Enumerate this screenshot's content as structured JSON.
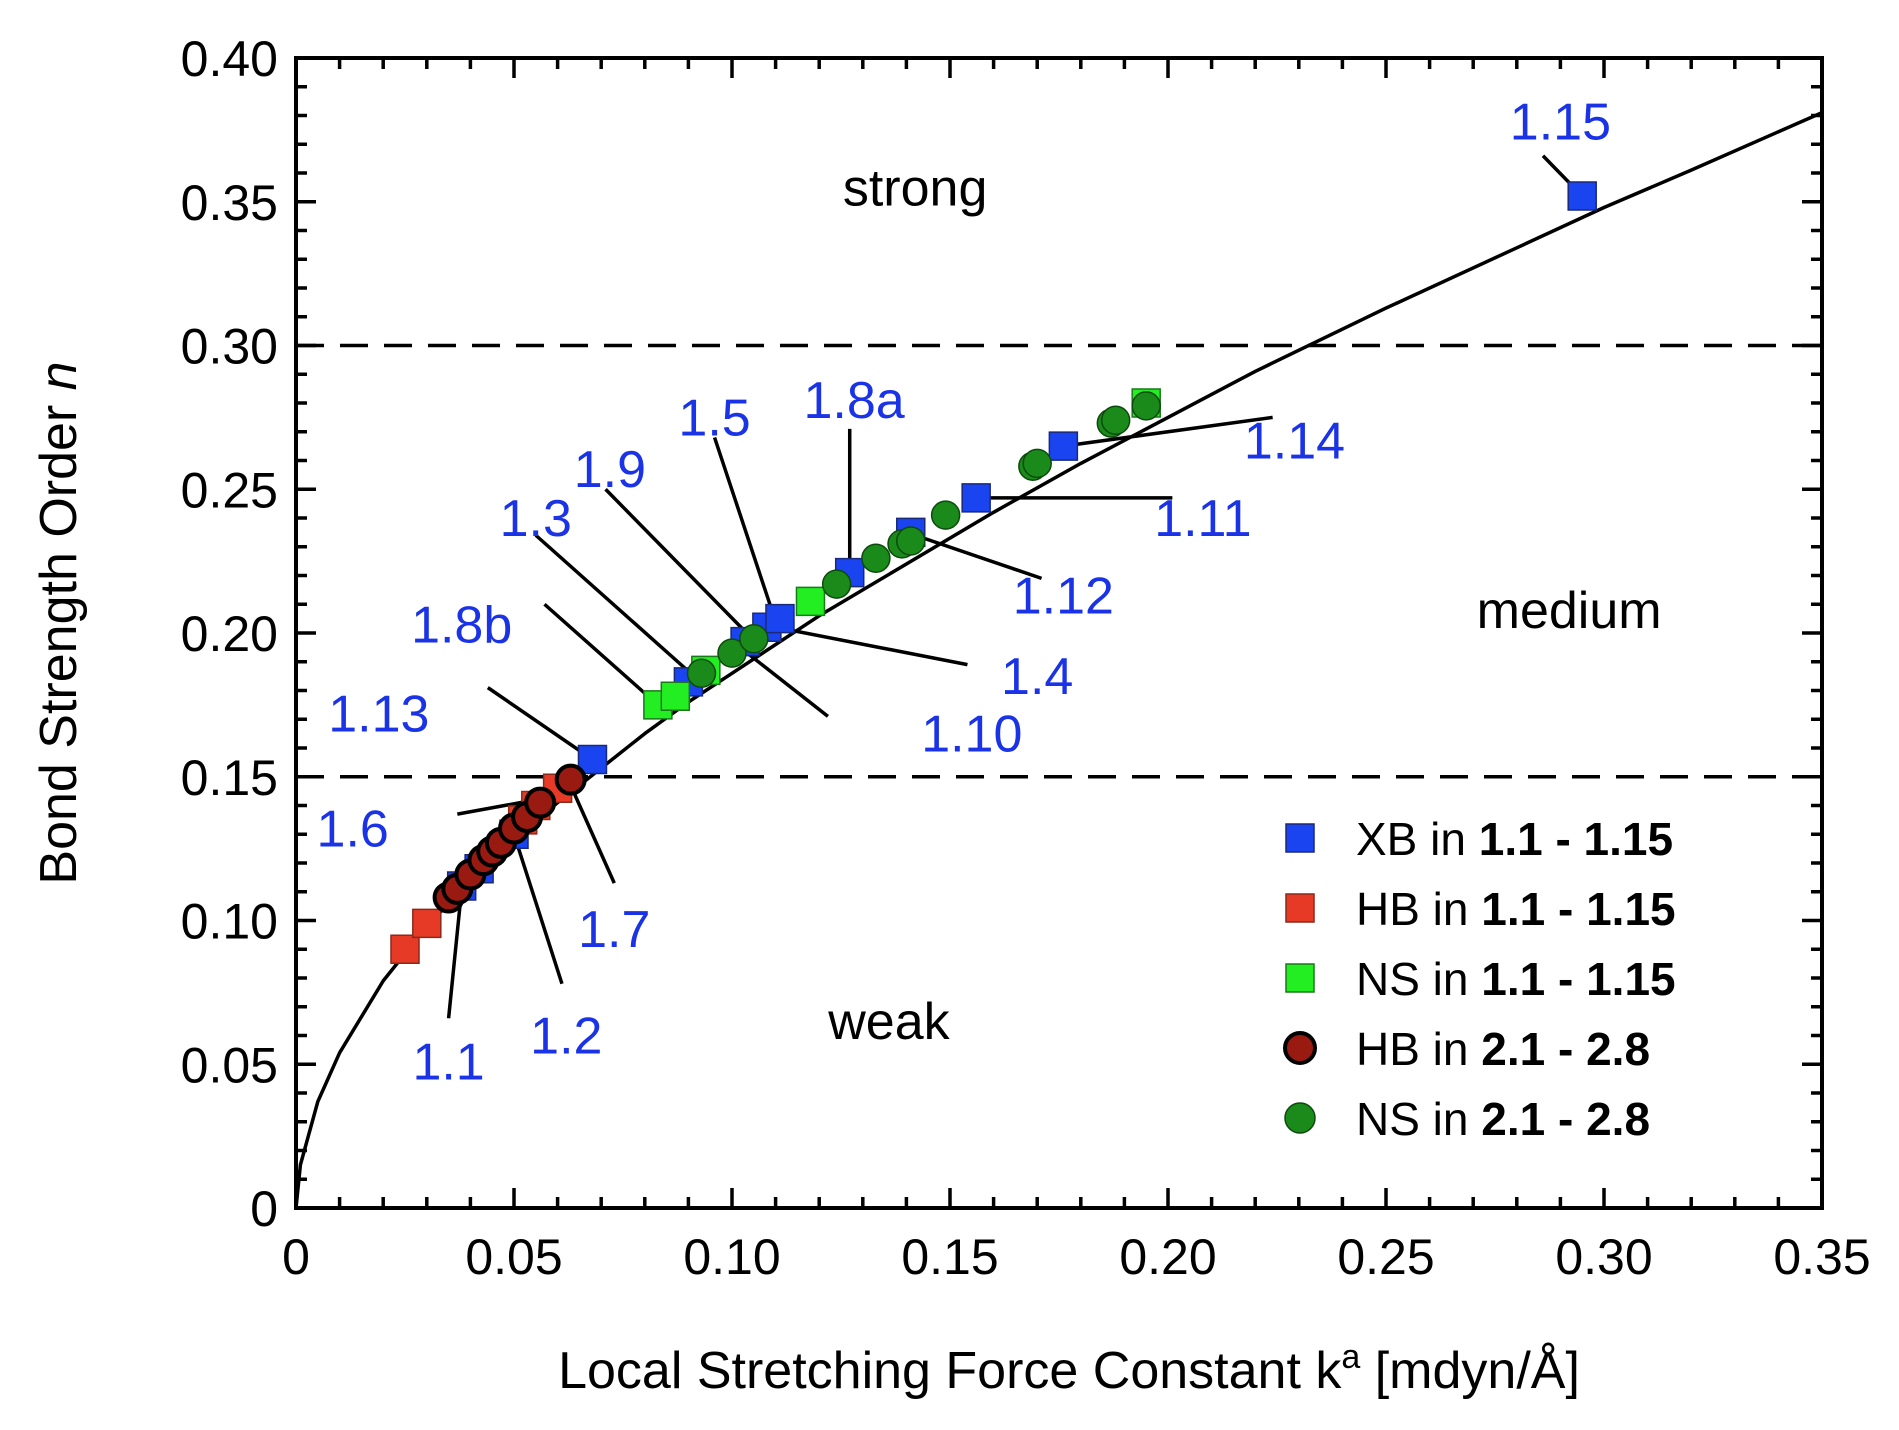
{
  "chart_data": {
    "type": "scatter",
    "xlabel": "Local Stretching Force Constant k",
    "xlabel_sup": "a",
    "xlabel_unit": " [mdyn/Å]",
    "ylabel": "Bond Strength Order ",
    "ylabel_var": "n",
    "xlim": [
      0,
      0.35
    ],
    "ylim": [
      0,
      0.4
    ],
    "x_ticks": [
      0,
      0.05,
      0.1,
      0.15,
      0.2,
      0.25,
      0.3,
      0.35
    ],
    "x_tick_labels": [
      "0",
      "0.05",
      "0.10",
      "0.15",
      "0.20",
      "0.25",
      "0.30",
      "0.35"
    ],
    "y_ticks": [
      0,
      0.05,
      0.1,
      0.15,
      0.2,
      0.25,
      0.3,
      0.35,
      0.4
    ],
    "y_tick_labels": [
      "0",
      "0.05",
      "0.10",
      "0.15",
      "0.20",
      "0.25",
      "0.30",
      "0.35",
      "0.40"
    ],
    "thresholds": [
      0.15,
      0.3
    ],
    "regions": [
      {
        "text": "strong",
        "x": 0.142,
        "y": 0.355
      },
      {
        "text": "medium",
        "x": 0.292,
        "y": 0.208
      },
      {
        "text": "weak",
        "x": 0.136,
        "y": 0.065
      }
    ],
    "curve": {
      "description": "power-law fit n = a * (k^a)^b",
      "points": [
        [
          0,
          0
        ],
        [
          0.001,
          0.015
        ],
        [
          0.005,
          0.037
        ],
        [
          0.01,
          0.054
        ],
        [
          0.02,
          0.079
        ],
        [
          0.03,
          0.098
        ],
        [
          0.04,
          0.114
        ],
        [
          0.05,
          0.128
        ],
        [
          0.06,
          0.141
        ],
        [
          0.07,
          0.153
        ],
        [
          0.08,
          0.165
        ],
        [
          0.09,
          0.176
        ],
        [
          0.1,
          0.186
        ],
        [
          0.12,
          0.206
        ],
        [
          0.14,
          0.224
        ],
        [
          0.16,
          0.242
        ],
        [
          0.18,
          0.259
        ],
        [
          0.2,
          0.275
        ],
        [
          0.22,
          0.291
        ],
        [
          0.25,
          0.313
        ],
        [
          0.28,
          0.334
        ],
        [
          0.3,
          0.348
        ],
        [
          0.32,
          0.361
        ],
        [
          0.35,
          0.381
        ]
      ]
    },
    "series": [
      {
        "name": "XB in ",
        "name_bold": "1.1 - 1.15",
        "marker": "square",
        "color": "#1a44f0",
        "stroke": "#1a2a7a",
        "points": [
          [
            0.038,
            0.112
          ],
          [
            0.042,
            0.118
          ],
          [
            0.05,
            0.13
          ],
          [
            0.068,
            0.156
          ],
          [
            0.09,
            0.183
          ],
          [
            0.103,
            0.197
          ],
          [
            0.108,
            0.202
          ],
          [
            0.111,
            0.205
          ],
          [
            0.127,
            0.221
          ],
          [
            0.141,
            0.235
          ],
          [
            0.156,
            0.247
          ],
          [
            0.176,
            0.265
          ],
          [
            0.295,
            0.352
          ]
        ]
      },
      {
        "name": "HB in ",
        "name_bold": "1.1 - 1.15",
        "marker": "square",
        "color": "#e63a26",
        "stroke": "#8a2a1a",
        "points": [
          [
            0.025,
            0.09
          ],
          [
            0.03,
            0.099
          ],
          [
            0.052,
            0.135
          ],
          [
            0.055,
            0.14
          ],
          [
            0.06,
            0.146
          ]
        ]
      },
      {
        "name": "NS in ",
        "name_bold": "1.1 - 1.15",
        "marker": "square",
        "color": "#22ee22",
        "stroke": "#1a7a1a",
        "points": [
          [
            0.083,
            0.175
          ],
          [
            0.087,
            0.178
          ],
          [
            0.094,
            0.187
          ],
          [
            0.118,
            0.211
          ],
          [
            0.195,
            0.28
          ]
        ]
      },
      {
        "name": "HB in ",
        "name_bold": "2.1 - 2.8",
        "marker": "circle",
        "color": "#991a10",
        "stroke": "#000000",
        "points": [
          [
            0.035,
            0.108
          ],
          [
            0.037,
            0.111
          ],
          [
            0.04,
            0.116
          ],
          [
            0.043,
            0.121
          ],
          [
            0.045,
            0.124
          ],
          [
            0.047,
            0.127
          ],
          [
            0.05,
            0.132
          ],
          [
            0.053,
            0.136
          ],
          [
            0.056,
            0.141
          ],
          [
            0.063,
            0.149
          ]
        ]
      },
      {
        "name": "NS in ",
        "name_bold": "2.1 - 2.8",
        "marker": "circle",
        "color": "#1a8a1a",
        "stroke": "#0d4a0d",
        "points": [
          [
            0.093,
            0.186
          ],
          [
            0.1,
            0.193
          ],
          [
            0.105,
            0.198
          ],
          [
            0.124,
            0.217
          ],
          [
            0.133,
            0.226
          ],
          [
            0.139,
            0.231
          ],
          [
            0.141,
            0.232
          ],
          [
            0.149,
            0.241
          ],
          [
            0.169,
            0.258
          ],
          [
            0.17,
            0.259
          ],
          [
            0.187,
            0.273
          ],
          [
            0.188,
            0.274
          ],
          [
            0.195,
            0.279
          ]
        ]
      }
    ],
    "annotations": [
      {
        "text": "1.15",
        "tx": 0.29,
        "ty": 0.378,
        "lx1": 0.286,
        "ly1": 0.366,
        "lx2": 0.295,
        "ly2": 0.352
      },
      {
        "text": "1.14",
        "tx": 0.229,
        "ty": 0.267,
        "lx1": 0.224,
        "ly1": 0.275,
        "lx2": 0.176,
        "ly2": 0.265
      },
      {
        "text": "1.11",
        "tx": 0.208,
        "ty": 0.24,
        "lx1": 0.201,
        "ly1": 0.247,
        "lx2": 0.157,
        "ly2": 0.247
      },
      {
        "text": "1.12",
        "tx": 0.176,
        "ty": 0.213,
        "lx1": 0.171,
        "ly1": 0.219,
        "lx2": 0.142,
        "ly2": 0.234
      },
      {
        "text": "1.8a",
        "tx": 0.128,
        "ty": 0.281,
        "lx1": 0.127,
        "ly1": 0.271,
        "lx2": 0.127,
        "ly2": 0.22
      },
      {
        "text": "1.5",
        "tx": 0.096,
        "ty": 0.275,
        "lx1": 0.096,
        "ly1": 0.268,
        "lx2": 0.11,
        "ly2": 0.204
      },
      {
        "text": "1.9",
        "tx": 0.072,
        "ty": 0.257,
        "lx1": 0.071,
        "ly1": 0.25,
        "lx2": 0.104,
        "ly2": 0.199
      },
      {
        "text": "1.3",
        "tx": 0.055,
        "ty": 0.24,
        "lx1": 0.055,
        "ly1": 0.234,
        "lx2": 0.092,
        "ly2": 0.184
      },
      {
        "text": "1.4",
        "tx": 0.17,
        "ty": 0.185,
        "lx1": 0.154,
        "ly1": 0.189,
        "lx2": 0.11,
        "ly2": 0.202
      },
      {
        "text": "1.10",
        "tx": 0.155,
        "ty": 0.165,
        "lx1": 0.122,
        "ly1": 0.171,
        "lx2": 0.101,
        "ly2": 0.196
      },
      {
        "text": "1.8b",
        "tx": 0.038,
        "ty": 0.203,
        "lx1": 0.057,
        "ly1": 0.21,
        "lx2": 0.083,
        "ly2": 0.175
      },
      {
        "text": "1.13",
        "tx": 0.019,
        "ty": 0.172,
        "lx1": 0.044,
        "ly1": 0.181,
        "lx2": 0.068,
        "ly2": 0.156
      },
      {
        "text": "1.6",
        "tx": 0.013,
        "ty": 0.132,
        "lx1": 0.037,
        "ly1": 0.137,
        "lx2": 0.055,
        "ly2": 0.142
      },
      {
        "text": "1.7",
        "tx": 0.073,
        "ty": 0.097,
        "lx1": 0.073,
        "ly1": 0.113,
        "lx2": 0.063,
        "ly2": 0.147
      },
      {
        "text": "1.2",
        "tx": 0.062,
        "ty": 0.06,
        "lx1": 0.061,
        "ly1": 0.078,
        "lx2": 0.05,
        "ly2": 0.13
      },
      {
        "text": "1.1",
        "tx": 0.035,
        "ty": 0.051,
        "lx1": 0.035,
        "ly1": 0.066,
        "lx2": 0.038,
        "ly2": 0.111
      }
    ],
    "legend_position": "bottom-right"
  }
}
